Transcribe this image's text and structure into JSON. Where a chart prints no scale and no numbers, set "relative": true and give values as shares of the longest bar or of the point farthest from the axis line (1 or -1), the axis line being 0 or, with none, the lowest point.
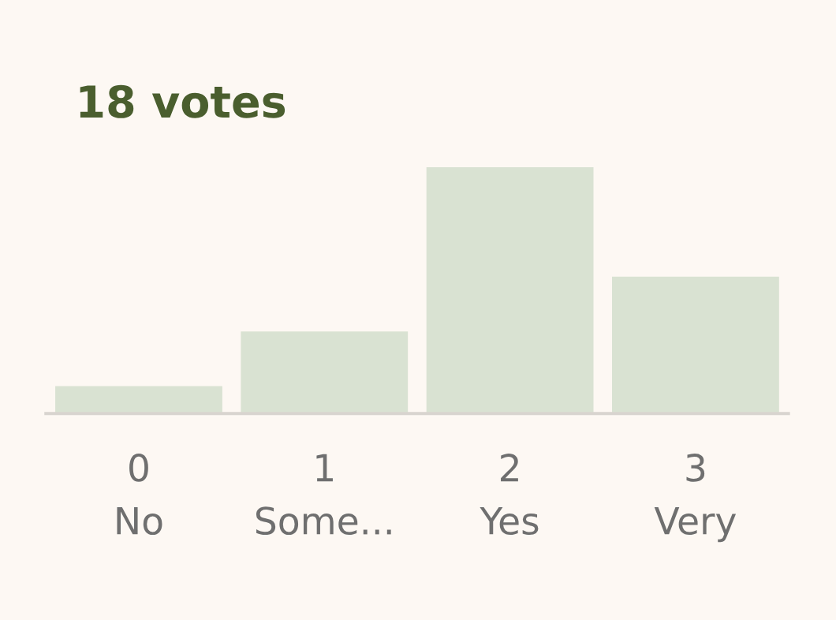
{
  "chart_data": {
    "type": "bar",
    "title": "18 votes",
    "categories": [
      "0\nNo",
      "1\nSome...",
      "2\nYes",
      "3\nVery"
    ],
    "values": [
      0.111,
      0.333,
      1,
      0.556
    ],
    "relative": true,
    "color": "#d9e2d2",
    "grid": false,
    "legend": false
  }
}
